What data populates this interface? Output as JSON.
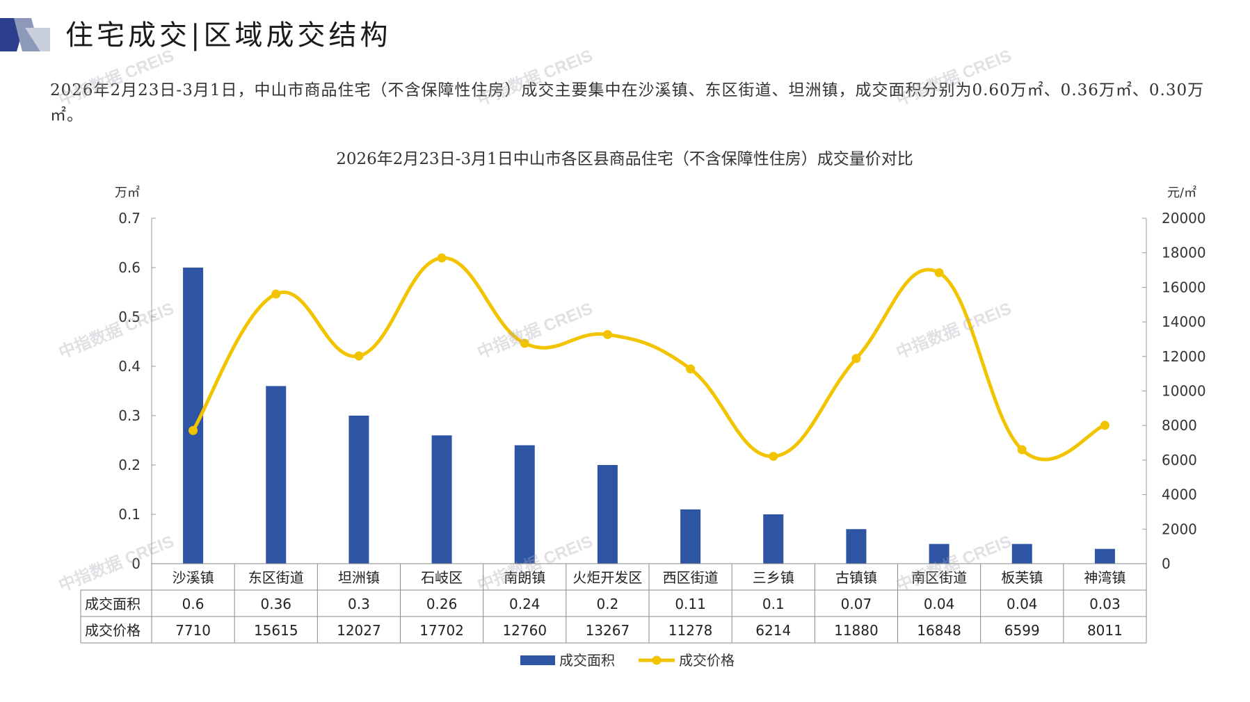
{
  "page": {
    "title": "住宅成交|区域成交结构",
    "summary": "2026年2月23日-3月1日，中山市商品住宅（不含保障性住房）成交主要集中在沙溪镇、东区街道、坦洲镇，成交面积分别为0.60万㎡、0.36万㎡、0.30万㎡。"
  },
  "colors": {
    "bar": "#2E54A4",
    "line": "#F2C400",
    "accent": "#2B3F8C"
  },
  "watermark": "中指数据 CREIS",
  "chart_data": {
    "type": "bar",
    "title": "2026年2月23日-3月1日中山市各区县商品住宅（不含保障性住房）成交量价对比",
    "y_left_unit": "万㎡",
    "y_right_unit": "元/㎡",
    "y_left_range": [
      0,
      0.7
    ],
    "y_left_ticks": [
      "0",
      "0.1",
      "0.2",
      "0.3",
      "0.4",
      "0.5",
      "0.6",
      "0.7"
    ],
    "y_right_range": [
      0,
      20000
    ],
    "y_right_ticks": [
      "0",
      "2000",
      "4000",
      "6000",
      "8000",
      "10000",
      "12000",
      "14000",
      "16000",
      "18000",
      "20000"
    ],
    "categories": [
      "沙溪镇",
      "东区街道",
      "坦洲镇",
      "石岐区",
      "南朗镇",
      "火炬开发区",
      "西区街道",
      "三乡镇",
      "古镇镇",
      "南区街道",
      "板芙镇",
      "神湾镇"
    ],
    "series": [
      {
        "name": "成交面积",
        "type": "bar",
        "axis": "left",
        "values": [
          0.6,
          0.36,
          0.3,
          0.26,
          0.24,
          0.2,
          0.11,
          0.1,
          0.07,
          0.04,
          0.04,
          0.03
        ]
      },
      {
        "name": "成交价格",
        "type": "line",
        "axis": "right",
        "values": [
          7710,
          15615,
          12027,
          17702,
          12760,
          13267,
          11278,
          6214,
          11880,
          16848,
          6599,
          8011
        ]
      }
    ],
    "table_rows": [
      {
        "label": "成交面积",
        "cells": [
          "0.6",
          "0.36",
          "0.3",
          "0.26",
          "0.24",
          "0.2",
          "0.11",
          "0.1",
          "0.07",
          "0.04",
          "0.04",
          "0.03"
        ]
      },
      {
        "label": "成交价格",
        "cells": [
          "7710",
          "15615",
          "12027",
          "17702",
          "12760",
          "13267",
          "11278",
          "6214",
          "11880",
          "16848",
          "6599",
          "8011"
        ]
      }
    ],
    "legend_position": "bottom",
    "grid": false
  }
}
